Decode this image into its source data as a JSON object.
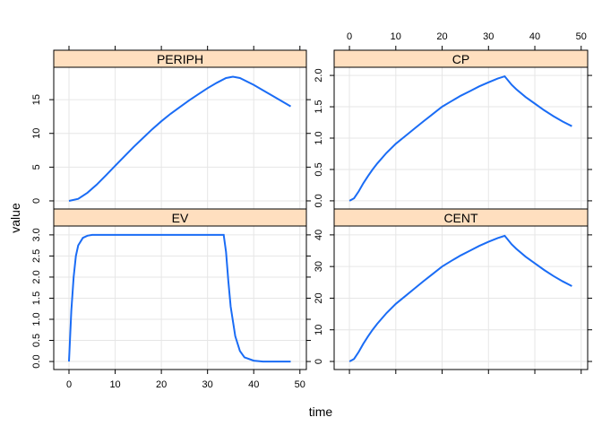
{
  "chart_data": {
    "type": "line",
    "xlabel": "time",
    "ylabel": "value",
    "xlim": [
      -3.3,
      51.4
    ],
    "xticks": [
      0,
      10,
      20,
      30,
      40,
      50
    ],
    "grid": true,
    "line_color": "#1a6cf5",
    "strip_color": "#ffdfbf",
    "panels": [
      {
        "name": "PERIPH",
        "ylim": [
          -1.2,
          19.8
        ],
        "yticks": [
          "0",
          "5",
          "10",
          "15"
        ],
        "ytick_values": [
          0,
          5,
          10,
          15
        ],
        "x": [
          0,
          2,
          4,
          6,
          8,
          10,
          12,
          14,
          16,
          18,
          20,
          22,
          24,
          26,
          28,
          30,
          32,
          34,
          35.5,
          37,
          40,
          42,
          44,
          46,
          48
        ],
        "y": [
          0,
          0.3,
          1.2,
          2.4,
          3.8,
          5.2,
          6.6,
          8,
          9.3,
          10.6,
          11.8,
          12.9,
          13.9,
          14.9,
          15.8,
          16.7,
          17.5,
          18.2,
          18.4,
          18.2,
          17.2,
          16.4,
          15.6,
          14.8,
          14.0
        ]
      },
      {
        "name": "CP",
        "ylim": [
          -0.13,
          2.13
        ],
        "yticks": [
          "0.0",
          "0.5",
          "1.0",
          "1.5",
          "2.0"
        ],
        "ytick_values": [
          0,
          0.5,
          1,
          1.5,
          2
        ],
        "x": [
          0,
          1,
          2,
          3,
          4,
          5,
          6,
          8,
          10,
          12,
          14,
          16,
          18,
          20,
          22,
          24,
          26,
          28,
          30,
          32,
          33.5,
          35,
          36,
          38,
          40,
          42,
          44,
          46,
          48
        ],
        "y": [
          0,
          0.04,
          0.15,
          0.28,
          0.395,
          0.5,
          0.595,
          0.765,
          0.91,
          1.03,
          1.15,
          1.27,
          1.385,
          1.5,
          1.59,
          1.675,
          1.75,
          1.825,
          1.89,
          1.95,
          1.985,
          1.85,
          1.78,
          1.655,
          1.55,
          1.445,
          1.35,
          1.265,
          1.19
        ]
      },
      {
        "name": "EV",
        "ylim": [
          -0.19,
          3.21
        ],
        "yticks": [
          "0.0",
          "0.5",
          "1.0",
          "1.5",
          "2.0",
          "2.5",
          "3.0"
        ],
        "ytick_values": [
          0,
          0.5,
          1,
          1.5,
          2,
          2.5,
          3
        ],
        "x": [
          0,
          0.5,
          1,
          1.5,
          2,
          3,
          4,
          5,
          33.5,
          34,
          34.5,
          35,
          36,
          37,
          38,
          40,
          42,
          48
        ],
        "y": [
          0,
          1.2,
          2.0,
          2.5,
          2.75,
          2.93,
          2.98,
          3,
          3,
          2.6,
          1.9,
          1.3,
          0.6,
          0.25,
          0.1,
          0.02,
          0,
          0
        ]
      },
      {
        "name": "CENT",
        "ylim": [
          -2.55,
          42.8
        ],
        "yticks": [
          "0",
          "10",
          "20",
          "30",
          "40"
        ],
        "ytick_values": [
          0,
          10,
          20,
          30,
          40
        ],
        "x": [
          0,
          1,
          2,
          3,
          4,
          5,
          6,
          8,
          10,
          12,
          14,
          16,
          18,
          20,
          22,
          24,
          26,
          28,
          30,
          32,
          33.5,
          35,
          36,
          38,
          40,
          42,
          44,
          46,
          48
        ],
        "y": [
          0,
          0.8,
          3,
          5.6,
          7.9,
          10,
          11.9,
          15.3,
          18.2,
          20.6,
          23,
          25.4,
          27.7,
          30,
          31.8,
          33.5,
          35,
          36.5,
          37.8,
          39,
          39.7,
          37,
          35.6,
          33.1,
          31,
          28.9,
          27,
          25.3,
          23.8
        ]
      }
    ]
  }
}
